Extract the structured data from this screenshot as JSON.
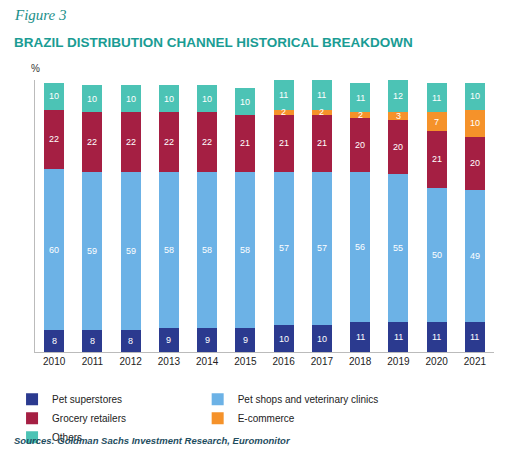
{
  "chart_data": {
    "type": "bar",
    "caption": "Figure 3",
    "title": "BRAZIL DISTRIBUTION CHANNEL HISTORICAL BREAKDOWN",
    "y_label": "%",
    "source": "Sources: Goldman Sachs Investment Research, Euromonitor",
    "stacked": true,
    "data_labels": true,
    "grid": false,
    "legend": "bottom",
    "tick_labels": "x",
    "ylim": [
      0,
      101
    ],
    "categories": [
      "2010",
      "2011",
      "2012",
      "2013",
      "2014",
      "2015",
      "2016",
      "2017",
      "2018",
      "2019",
      "2020",
      "2021"
    ],
    "series": [
      {
        "name": "Pet superstores",
        "color": "#2b3a8f",
        "values": [
          8,
          8,
          8,
          9,
          9,
          9,
          10,
          10,
          11,
          11,
          11,
          11
        ]
      },
      {
        "name": "Pet shops and veterinary clinics",
        "color": "#6cb2e6",
        "values": [
          60,
          59,
          59,
          58,
          58,
          58,
          57,
          57,
          56,
          55,
          50,
          49
        ]
      },
      {
        "name": "Grocery retailers",
        "color": "#a51f43",
        "values": [
          22,
          22,
          22,
          22,
          22,
          21,
          21,
          21,
          20,
          20,
          21,
          20
        ]
      },
      {
        "name": "E-commerce",
        "color": "#f5922a",
        "values": [
          null,
          null,
          null,
          null,
          null,
          null,
          2,
          2,
          2,
          3,
          7,
          10
        ]
      },
      {
        "name": "Others",
        "color": "#4cc3b5",
        "values": [
          10,
          10,
          10,
          10,
          10,
          10,
          11,
          11,
          11,
          12,
          11,
          10
        ]
      }
    ]
  }
}
